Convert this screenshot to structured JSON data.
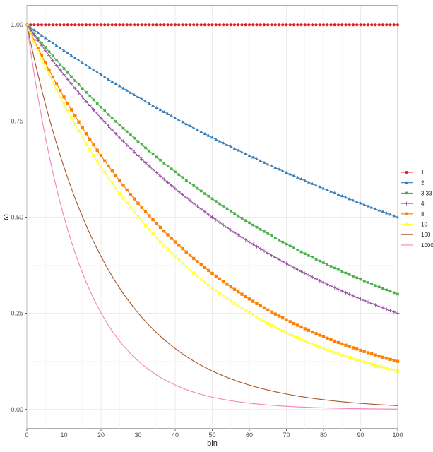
{
  "chart_data": {
    "type": "line",
    "title": "",
    "xlabel": "bin",
    "ylabel": "ω",
    "xlim": [
      0,
      100
    ],
    "ylim": [
      -0.05,
      1.05
    ],
    "x_ticks": [
      0,
      10,
      20,
      30,
      40,
      50,
      60,
      70,
      80,
      90,
      100
    ],
    "x_tick_labels": [
      "0",
      "10",
      "20",
      "30",
      "40",
      "50",
      "60",
      "70",
      "80",
      "90",
      "100"
    ],
    "y_ticks": [
      0,
      0.25,
      0.5,
      0.75,
      1.0
    ],
    "y_tick_labels": [
      "0.00",
      "0.25",
      "0.50",
      "0.75",
      "1.00"
    ],
    "grid": true,
    "legend_position": "right",
    "x_range": {
      "start": 0,
      "end": 100,
      "step": 1
    },
    "series": [
      {
        "name": "1",
        "color": "#e41a1c",
        "marker": "circle",
        "values_at_bins": {
          "0": 1.0,
          "25": 1.0,
          "50": 1.0,
          "75": 1.0,
          "100": 1.0
        }
      },
      {
        "name": "2",
        "color": "#377eb8",
        "marker": "triangle",
        "values_at_bins": {
          "0": 1.0,
          "25": 0.841,
          "50": 0.707,
          "75": 0.595,
          "100": 0.5
        }
      },
      {
        "name": "3.33",
        "color": "#4daf4a",
        "marker": "square",
        "values_at_bins": {
          "0": 1.0,
          "25": 0.74,
          "50": 0.548,
          "75": 0.405,
          "100": 0.3
        }
      },
      {
        "name": "4",
        "color": "#984ea3",
        "marker": "plus",
        "values_at_bins": {
          "0": 1.0,
          "25": 0.707,
          "50": 0.5,
          "75": 0.354,
          "100": 0.25
        }
      },
      {
        "name": "8",
        "color": "#ff7f00",
        "marker": "square-open",
        "values_at_bins": {
          "0": 1.0,
          "25": 0.595,
          "50": 0.354,
          "75": 0.21,
          "100": 0.125
        }
      },
      {
        "name": "10",
        "color": "#ffff33",
        "marker": "cross",
        "values_at_bins": {
          "0": 1.0,
          "25": 0.562,
          "50": 0.316,
          "75": 0.178,
          "100": 0.1
        }
      },
      {
        "name": "100",
        "color": "#a65628",
        "marker": "none",
        "values_at_bins": {
          "0": 1.0,
          "25": 0.316,
          "50": 0.1,
          "75": 0.032,
          "100": 0.01
        }
      },
      {
        "name": "1000",
        "color": "#f781bf",
        "marker": "none",
        "values_at_bins": {
          "0": 1.0,
          "25": 0.178,
          "50": 0.032,
          "75": 0.006,
          "100": 0.001
        }
      }
    ]
  }
}
